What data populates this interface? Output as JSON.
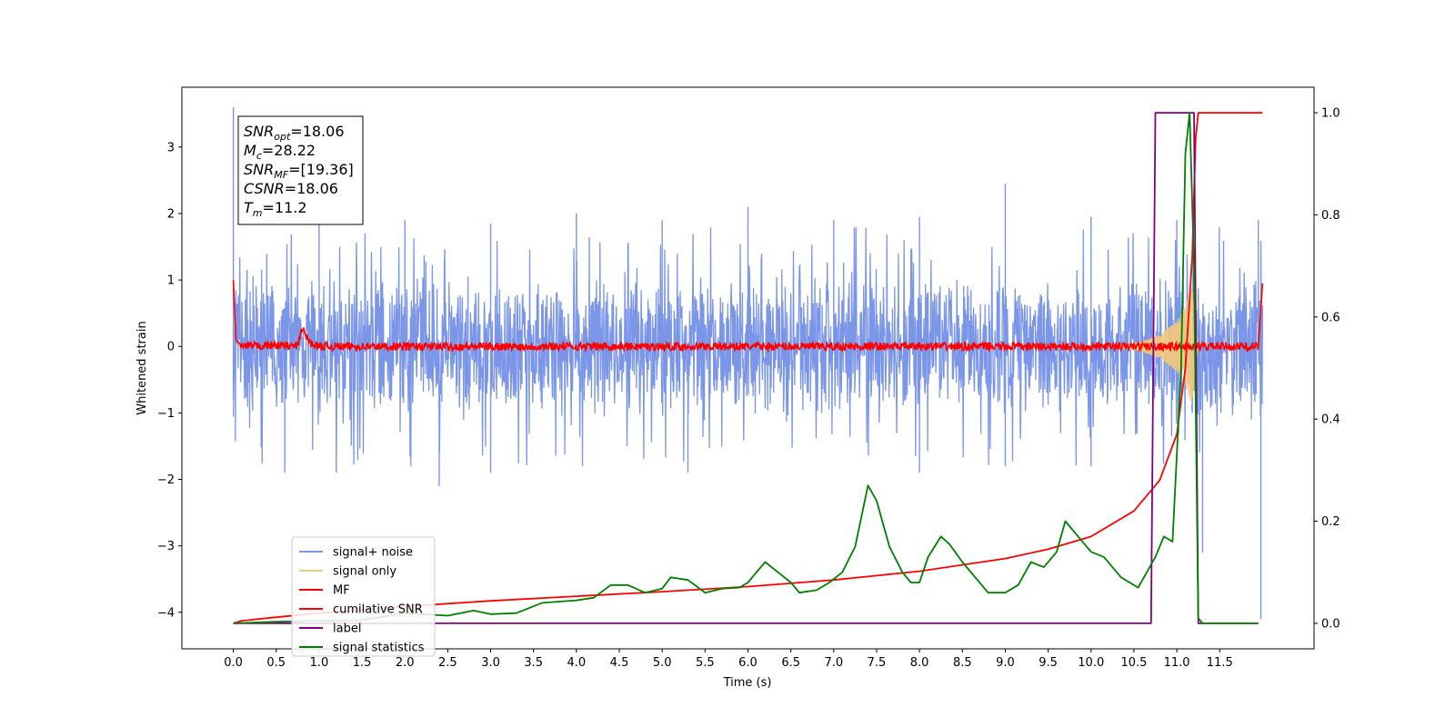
{
  "chart_data": {
    "type": "line",
    "xlabel": "Time (s)",
    "ylabel": "Whitened strain",
    "xlim": [
      -0.6,
      12.6
    ],
    "ylim_left": [
      -4.55,
      3.9
    ],
    "ylim_right": [
      -0.05,
      1.05
    ],
    "x_ticks": [
      "0.0",
      "0.5",
      "1.0",
      "1.5",
      "2.0",
      "2.5",
      "3.0",
      "3.5",
      "4.0",
      "4.5",
      "5.0",
      "5.5",
      "6.0",
      "6.5",
      "7.0",
      "7.5",
      "8.0",
      "8.5",
      "9.0",
      "9.5",
      "10.0",
      "10.5",
      "11.0",
      "11.5"
    ],
    "y_ticks_left": [
      "3",
      "2",
      "1",
      "0",
      "−1",
      "−2",
      "−3",
      "−4"
    ],
    "y_ticks_right": [
      "1.0",
      "0.8",
      "0.6",
      "0.4",
      "0.2",
      "0.0"
    ],
    "legend_position": "lower-left",
    "annotation": {
      "lines": [
        {
          "base": "SNR",
          "sub": "opt",
          "value": "=18.06"
        },
        {
          "base": "M",
          "sub": "c",
          "value": "=28.22"
        },
        {
          "base": "SNR",
          "sub": "MF",
          "value": "=[19.36]"
        },
        {
          "base": "CSNR",
          "sub": "",
          "value": "=18.06"
        },
        {
          "base": "T",
          "sub": "m",
          "value": "=11.2"
        }
      ]
    },
    "series": [
      {
        "name": "signal+ noise",
        "color": "#7b96e8",
        "axis": "left",
        "noise_band": [
          -1.1,
          1.1
        ],
        "peak_max": [
          [
            0.0,
            3.6
          ],
          [
            1.0,
            1.95
          ],
          [
            2.0,
            1.9
          ],
          [
            3.0,
            1.85
          ],
          [
            4.0,
            2.0
          ],
          [
            5.0,
            1.9
          ],
          [
            6.0,
            2.1
          ],
          [
            7.0,
            1.9
          ],
          [
            8.0,
            1.95
          ],
          [
            9.0,
            2.45
          ],
          [
            10.0,
            1.95
          ],
          [
            11.0,
            1.9
          ],
          [
            11.95,
            1.9
          ]
        ],
        "peak_min": [
          [
            0.0,
            -0.8
          ],
          [
            0.6,
            -1.9
          ],
          [
            1.2,
            -1.9
          ],
          [
            2.4,
            -2.1
          ],
          [
            3.0,
            -1.9
          ],
          [
            5.3,
            -1.9
          ],
          [
            8.0,
            -1.9
          ],
          [
            9.0,
            -1.8
          ],
          [
            10.0,
            -1.8
          ],
          [
            11.3,
            -3.1
          ],
          [
            11.98,
            -4.1
          ]
        ]
      },
      {
        "name": "signal only",
        "color": "#f5c97a",
        "axis": "left",
        "envelope": [
          [
            10.4,
            0.02
          ],
          [
            10.6,
            0.08
          ],
          [
            10.8,
            0.18
          ],
          [
            11.0,
            0.38
          ],
          [
            11.1,
            0.6
          ],
          [
            11.18,
            0.9
          ],
          [
            11.22,
            0.3
          ],
          [
            11.25,
            0.0
          ]
        ]
      },
      {
        "name": "MF",
        "color": "#ff0000",
        "axis": "left",
        "points": [
          [
            0.0,
            1.0
          ],
          [
            0.03,
            0.1
          ],
          [
            0.1,
            0.0
          ],
          [
            0.5,
            0.02
          ],
          [
            0.75,
            0.0
          ],
          [
            0.8,
            0.28
          ],
          [
            0.85,
            0.15
          ],
          [
            0.9,
            0.05
          ],
          [
            1.0,
            0.0
          ],
          [
            6.0,
            0.0
          ],
          [
            11.0,
            0.0
          ],
          [
            11.95,
            0.0
          ],
          [
            12.0,
            0.95
          ]
        ]
      },
      {
        "name": "cumilative SNR",
        "color": "#ff0000",
        "axis": "right",
        "points": [
          [
            0.0,
            0.0
          ],
          [
            0.1,
            0.005
          ],
          [
            0.5,
            0.012
          ],
          [
            1.0,
            0.02
          ],
          [
            2.0,
            0.033
          ],
          [
            3.0,
            0.044
          ],
          [
            4.0,
            0.053
          ],
          [
            5.0,
            0.062
          ],
          [
            6.0,
            0.072
          ],
          [
            7.0,
            0.085
          ],
          [
            8.0,
            0.102
          ],
          [
            9.0,
            0.127
          ],
          [
            9.5,
            0.145
          ],
          [
            10.0,
            0.17
          ],
          [
            10.5,
            0.22
          ],
          [
            10.8,
            0.28
          ],
          [
            11.0,
            0.37
          ],
          [
            11.1,
            0.5
          ],
          [
            11.18,
            0.72
          ],
          [
            11.22,
            0.95
          ],
          [
            11.25,
            1.0
          ],
          [
            12.0,
            1.0
          ]
        ]
      },
      {
        "name": "label",
        "color": "#800080",
        "axis": "right",
        "points": [
          [
            0.0,
            0.0
          ],
          [
            10.7,
            0.0
          ],
          [
            10.75,
            1.0
          ],
          [
            11.2,
            1.0
          ],
          [
            11.25,
            0.0
          ],
          [
            11.95,
            0.0
          ]
        ]
      },
      {
        "name": "signal statistics",
        "color": "#008000",
        "axis": "right",
        "points": [
          [
            0.0,
            0.0
          ],
          [
            0.5,
            0.003
          ],
          [
            1.0,
            0.005
          ],
          [
            1.5,
            0.006
          ],
          [
            2.0,
            0.02
          ],
          [
            2.5,
            0.015
          ],
          [
            2.8,
            0.025
          ],
          [
            3.0,
            0.018
          ],
          [
            3.3,
            0.02
          ],
          [
            3.6,
            0.04
          ],
          [
            4.0,
            0.045
          ],
          [
            4.2,
            0.05
          ],
          [
            4.4,
            0.075
          ],
          [
            4.6,
            0.075
          ],
          [
            4.8,
            0.06
          ],
          [
            5.0,
            0.068
          ],
          [
            5.1,
            0.09
          ],
          [
            5.3,
            0.085
          ],
          [
            5.5,
            0.06
          ],
          [
            5.7,
            0.068
          ],
          [
            5.9,
            0.07
          ],
          [
            6.0,
            0.08
          ],
          [
            6.1,
            0.1
          ],
          [
            6.2,
            0.12
          ],
          [
            6.35,
            0.1
          ],
          [
            6.5,
            0.08
          ],
          [
            6.6,
            0.06
          ],
          [
            6.8,
            0.065
          ],
          [
            6.95,
            0.08
          ],
          [
            7.1,
            0.1
          ],
          [
            7.25,
            0.15
          ],
          [
            7.4,
            0.27
          ],
          [
            7.5,
            0.24
          ],
          [
            7.65,
            0.15
          ],
          [
            7.8,
            0.1
          ],
          [
            7.9,
            0.08
          ],
          [
            8.0,
            0.08
          ],
          [
            8.1,
            0.13
          ],
          [
            8.25,
            0.17
          ],
          [
            8.35,
            0.155
          ],
          [
            8.5,
            0.12
          ],
          [
            8.65,
            0.09
          ],
          [
            8.8,
            0.06
          ],
          [
            9.0,
            0.06
          ],
          [
            9.15,
            0.075
          ],
          [
            9.3,
            0.12
          ],
          [
            9.45,
            0.11
          ],
          [
            9.6,
            0.14
          ],
          [
            9.7,
            0.2
          ],
          [
            9.85,
            0.17
          ],
          [
            10.0,
            0.14
          ],
          [
            10.15,
            0.13
          ],
          [
            10.35,
            0.09
          ],
          [
            10.55,
            0.07
          ],
          [
            10.65,
            0.1
          ],
          [
            10.75,
            0.13
          ],
          [
            10.85,
            0.17
          ],
          [
            10.95,
            0.16
          ],
          [
            11.05,
            0.5
          ],
          [
            11.1,
            0.92
          ],
          [
            11.15,
            1.0
          ],
          [
            11.2,
            0.7
          ],
          [
            11.25,
            0.01
          ],
          [
            11.3,
            0.0
          ],
          [
            11.95,
            0.0
          ]
        ]
      }
    ]
  }
}
